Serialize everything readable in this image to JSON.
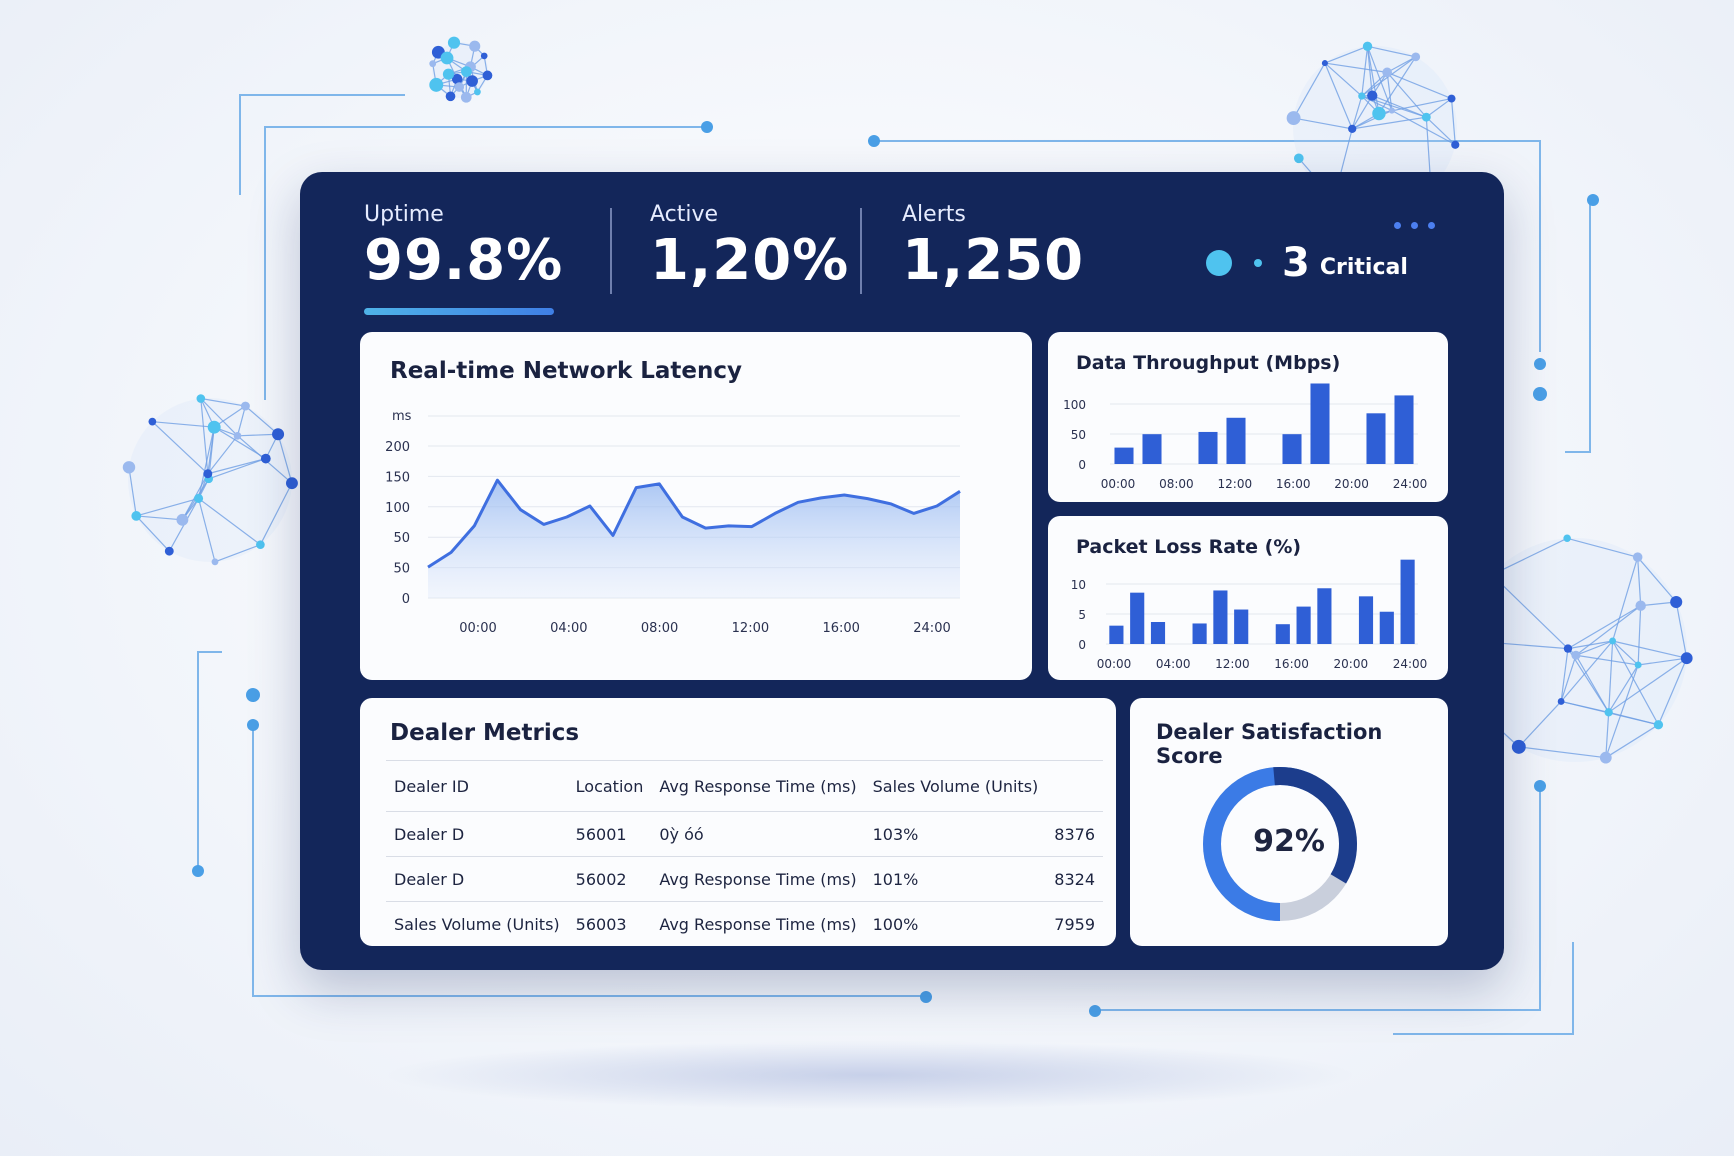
{
  "kpis": {
    "uptime": {
      "label": "Uptime",
      "value": "99.8%"
    },
    "active": {
      "label": "Active",
      "value": "1,20%"
    },
    "alerts": {
      "label": "Alerts",
      "value": "1,250"
    },
    "critical": {
      "count": "3",
      "label": "Critical"
    }
  },
  "colors": {
    "panel": "#13265a",
    "accent": "#3f6fe0",
    "bar": "#2f5fd6",
    "light_accent": "#4fc3ef"
  },
  "latency_card": {
    "title": "Real-time Network Latency"
  },
  "throughput_card": {
    "title": "Data Throughput (Mbps)"
  },
  "packet_card": {
    "title": "Packet Loss Rate (%)"
  },
  "dealer_card": {
    "title": "Dealer Metrics",
    "headers": [
      "Dealer ID",
      "Location",
      "Avg Response Time (ms)",
      "Sales Volume (Units)",
      ""
    ],
    "rows": [
      [
        "Dealer D",
        "56001",
        "0ỳ όό",
        "103%",
        "8376"
      ],
      [
        "Dealer D",
        "56002",
        "Avg Response Time (ms)",
        "101%",
        "8324"
      ],
      [
        "Sales Volume (Units)",
        "56003",
        "Avg Response Time (ms)",
        "100%",
        "7959"
      ]
    ]
  },
  "satisfaction_card": {
    "title": "Dealer Satisfaction Score",
    "value": "92%",
    "fraction": 0.92
  },
  "chart_data": [
    {
      "type": "area",
      "title": "Real-time Network Latency",
      "ylabel": "ms",
      "y_tick_labels": [
        "200",
        "150",
        "100",
        "50",
        "50",
        "0"
      ],
      "x_tick_labels": [
        "00:00",
        "04:00",
        "08:00",
        "12:00",
        "16:00",
        "24:00"
      ],
      "ylim": [
        0,
        250
      ],
      "x": [
        0,
        1,
        2,
        3,
        4,
        5,
        6,
        7,
        8,
        9,
        10,
        11,
        12,
        13,
        14,
        15,
        16,
        17,
        18,
        19,
        20,
        21,
        22,
        23
      ],
      "values": [
        42,
        62,
        98,
        160,
        120,
        100,
        110,
        125,
        85,
        150,
        155,
        110,
        95,
        98,
        97,
        115,
        130,
        136,
        140,
        135,
        128,
        115,
        125,
        145
      ],
      "grid": true
    },
    {
      "type": "bar",
      "title": "Data Throughput (Mbps)",
      "y_tick_labels": [
        "100",
        "50",
        "0"
      ],
      "x_tick_labels": [
        "00:00",
        "08:00",
        "12:00",
        "16:00",
        "20:00",
        "24:00"
      ],
      "ylim": [
        0,
        110
      ],
      "values": [
        22,
        40,
        0,
        43,
        62,
        0,
        40,
        108,
        0,
        68,
        92
      ],
      "grid": true
    },
    {
      "type": "bar",
      "title": "Packet Loss Rate (%)",
      "y_tick_labels": [
        "10",
        "5",
        "0"
      ],
      "x_tick_labels": [
        "00:00",
        "04:00",
        "12:00",
        "16:00",
        "20:00",
        "24:00"
      ],
      "ylim": [
        0,
        12
      ],
      "values": [
        2.5,
        7,
        3,
        0,
        2.8,
        7.3,
        4.7,
        0,
        2.7,
        5.1,
        7.6,
        0,
        6.5,
        4.4,
        11.5
      ],
      "grid": true
    }
  ]
}
